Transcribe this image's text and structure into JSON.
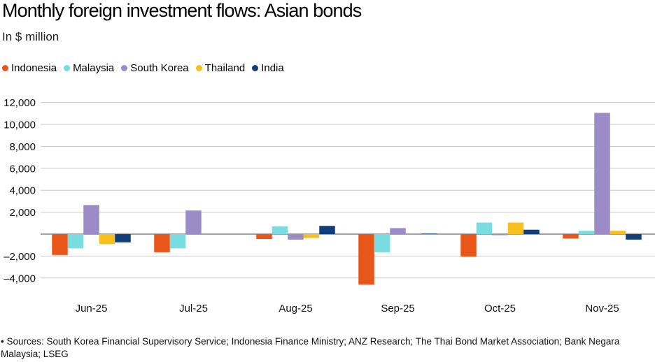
{
  "chart_data": {
    "type": "bar",
    "title": "Monthly foreign investment flows: Asian bonds",
    "subtitle": "In $ million",
    "xlabel": "",
    "ylabel": "",
    "ylim": [
      -5000,
      12000
    ],
    "yticks": [
      12000,
      10000,
      8000,
      6000,
      4000,
      2000,
      -2000,
      -4000
    ],
    "ytick_labels": [
      "12,000",
      "10,000",
      "8,000",
      "6,000",
      "4,000",
      "2,000",
      "–2,000",
      "–4,000"
    ],
    "categories": [
      "Jun-25",
      "Jul-25",
      "Aug-25",
      "Sep-25",
      "Oct-25",
      "Nov-25"
    ],
    "series": [
      {
        "name": "Indonesia",
        "color": "#e8561a",
        "values": [
          -1900,
          -1650,
          -450,
          -4600,
          -2050,
          -400
        ]
      },
      {
        "name": "Malaysia",
        "color": "#7adbe0",
        "values": [
          -1300,
          -1300,
          700,
          -1650,
          1050,
          300
        ]
      },
      {
        "name": "South Korea",
        "color": "#9b8bc7",
        "values": [
          2650,
          2150,
          -500,
          550,
          -100,
          11050
        ]
      },
      {
        "name": "Thailand",
        "color": "#f9bf1e",
        "values": [
          -900,
          0,
          -350,
          0,
          1050,
          300
        ]
      },
      {
        "name": "India",
        "color": "#123f7b",
        "values": [
          -750,
          0,
          750,
          50,
          400,
          -500
        ]
      }
    ],
    "grid": true,
    "legend": "top-left"
  },
  "source_note": "• Sources: South Korea Financial Supervisory Service; Indonesia Finance Ministry; ANZ Research; The Thai Bond Market Association; Bank Negara Malaysia; LSEG"
}
